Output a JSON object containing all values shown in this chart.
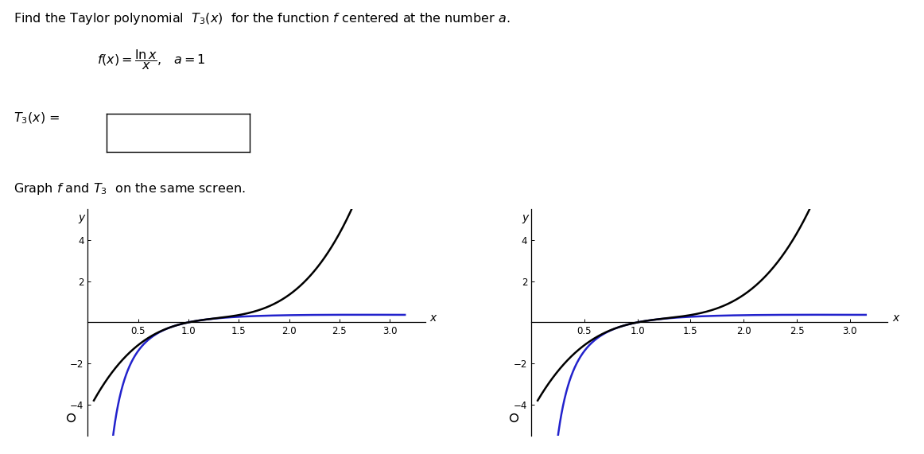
{
  "bg_color": "#ffffff",
  "f_color": "#000000",
  "T3_color": "#2222cc",
  "xticks": [
    0.5,
    1.0,
    1.5,
    2.0,
    2.5,
    3.0
  ],
  "yticks": [
    -4,
    -2,
    2,
    4
  ],
  "left_xlim": [
    0.0,
    3.35
  ],
  "left_ylim": [
    -5.5,
    5.5
  ],
  "right_xlim": [
    0.0,
    3.35
  ],
  "right_ylim": [
    -5.5,
    5.5
  ],
  "line_width": 1.8,
  "title": "Find the Taylor polynomial  $T_3(x)$  for the function $f$ centered at the number $a$.",
  "func_line": "$f(x) = \\dfrac{\\ln x}{x}$,  $a = 1$",
  "t3_line": "$T_3(x)$ =",
  "graph_line": "Graph $f$ and $T_3$  on the same screen."
}
